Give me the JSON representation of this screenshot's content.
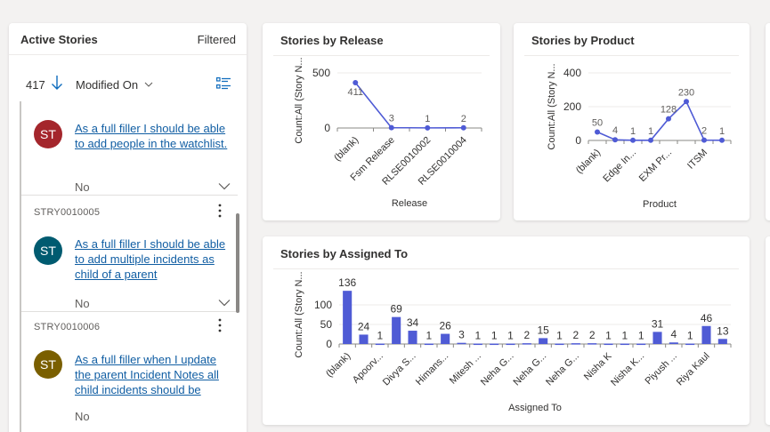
{
  "stories_panel": {
    "title": "Active Stories",
    "filter_status": "Filtered",
    "count": "417",
    "sort_field": "Modified On",
    "items": [
      {
        "id": "",
        "initials": "ST",
        "avatar_color": "#a4262c",
        "title": "As a full filler I should be able to add people in the watchlist.",
        "value": "No"
      },
      {
        "id": "STRY0010005",
        "initials": "ST",
        "avatar_color": "#005b70",
        "title": "As a full filler I should be able to add multiple incidents as child of a parent",
        "value": "No"
      },
      {
        "id": "STRY0010006",
        "initials": "ST",
        "avatar_color": "#7a5f00",
        "title": "As a full filler when I update the parent Incident Notes all child incidents should be",
        "value": "No"
      }
    ]
  },
  "charts": {
    "release": {
      "title": "Stories by Release",
      "xlabel": "Release",
      "ylabel": "Count:All (Story N..."
    },
    "product": {
      "title": "Stories by Product",
      "xlabel": "Product",
      "ylabel": "Count:All (Story N..."
    },
    "assigned": {
      "title": "Stories by Assigned To",
      "xlabel": "Assigned To",
      "ylabel": "Count:All (Story N..."
    }
  },
  "chart_data": [
    {
      "type": "line",
      "title": "Stories by Release",
      "xlabel": "Release",
      "ylabel": "Count:All (Story N...",
      "categories": [
        "(blank)",
        "Fsm Release",
        "RLSE0010002",
        "RLSE0010004"
      ],
      "values": [
        411,
        3,
        1,
        2
      ],
      "data_labels": [
        "411",
        "3",
        "1",
        "2"
      ],
      "yticks": [
        0,
        500
      ],
      "ylim": [
        0,
        500
      ],
      "color": "#4f5bd5"
    },
    {
      "type": "line",
      "title": "Stories by Product",
      "xlabel": "Product",
      "ylabel": "Count:All (Story N...",
      "categories": [
        "(blank)",
        "",
        "Edge In...",
        "",
        "EXM Pr...",
        "",
        "ITSM",
        ""
      ],
      "values": [
        50,
        4,
        1,
        1,
        128,
        230,
        2,
        1
      ],
      "data_labels": [
        "50",
        "4",
        "1",
        "1",
        "128",
        "230",
        "2",
        "1"
      ],
      "yticks": [
        0,
        200,
        400
      ],
      "ylim": [
        0,
        400
      ],
      "color": "#4f5bd5"
    },
    {
      "type": "bar",
      "title": "Stories by Assigned To",
      "xlabel": "Assigned To",
      "ylabel": "Count:All (Story N...",
      "categories": [
        "(blank)",
        "",
        "Apoorv...",
        "",
        "Divya S...",
        "",
        "Himans...",
        "",
        "Mitesh ...",
        "",
        "Neha G...",
        "",
        "Neha G...",
        "",
        "Neha G...",
        "",
        "Nisha K",
        "",
        "Nisha K...",
        "",
        "Piyush ...",
        "",
        "Riya Kaul",
        ""
      ],
      "values": [
        136,
        24,
        1,
        69,
        34,
        1,
        26,
        3,
        1,
        1,
        1,
        2,
        15,
        1,
        2,
        2,
        1,
        1,
        1,
        31,
        4,
        1,
        46,
        13
      ],
      "data_labels": [
        "136",
        "24",
        "1",
        "69",
        "34",
        "1",
        "26",
        "3",
        "1",
        "1",
        "1",
        "2",
        "15",
        "1",
        "2",
        "2",
        "1",
        "1",
        "1",
        "31",
        "4",
        "1",
        "46",
        "13"
      ],
      "yticks": [
        0,
        50,
        100
      ],
      "ylim": [
        0,
        150
      ],
      "color": "#4f5bd5"
    }
  ]
}
